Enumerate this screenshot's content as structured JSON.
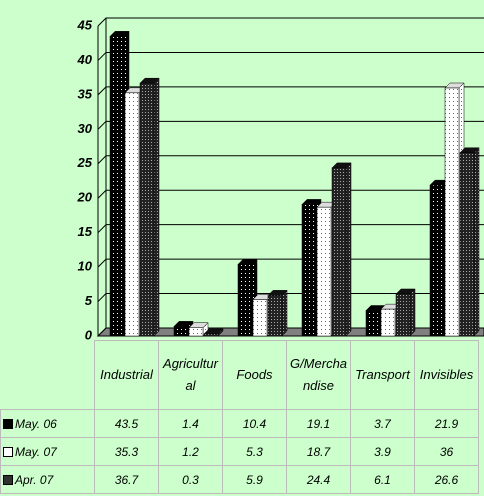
{
  "chart_data": {
    "type": "bar",
    "categories": [
      "Industrial",
      "Agricultural",
      "Foods",
      "G/Merchandise",
      "Transport",
      "Invisibles"
    ],
    "series": [
      {
        "name": "May. 06",
        "color": "#000000",
        "values": [
          43.5,
          1.4,
          10.4,
          19.1,
          3.7,
          21.9
        ]
      },
      {
        "name": "May. 07",
        "color": "#ffffff",
        "values": [
          35.3,
          1.2,
          5.3,
          18.7,
          3.9,
          36
        ]
      },
      {
        "name": "Apr. 07",
        "color": "#303030",
        "values": [
          36.7,
          0.3,
          5.9,
          24.4,
          6.1,
          26.6
        ]
      }
    ],
    "ylim": [
      0,
      45
    ],
    "yticks": [
      0,
      5,
      10,
      15,
      20,
      25,
      30,
      35,
      40,
      45
    ],
    "grid": true,
    "legend": "table"
  }
}
